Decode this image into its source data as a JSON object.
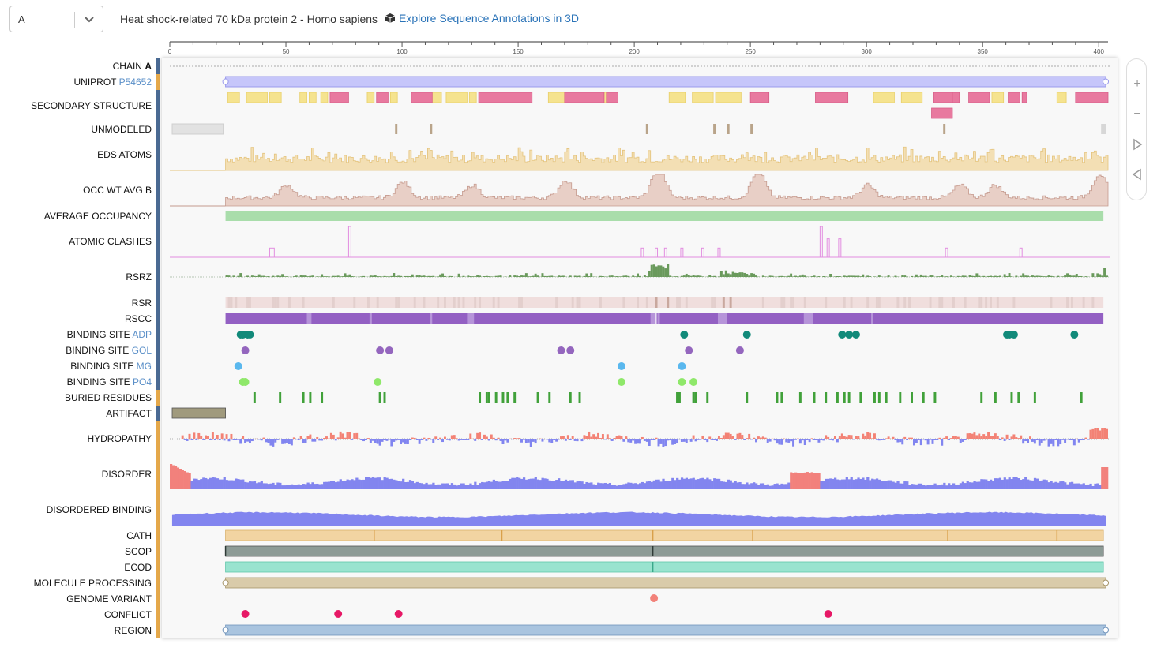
{
  "chain_select": {
    "value": "A"
  },
  "header": {
    "title": "Heat shock-related 70 kDa protein 2 - Homo sapiens",
    "explore_link": "Explore Sequence Annotations in 3D"
  },
  "ruler": {
    "ticks": [
      "0",
      "50",
      "100",
      "150",
      "200",
      "250",
      "300",
      "350",
      "400"
    ]
  },
  "tracks": [
    {
      "label": "CHAIN",
      "suffix": "A",
      "suffix_style": "bold"
    },
    {
      "label": "UNIPROT",
      "suffix": "P54652",
      "suffix_style": "acc"
    },
    {
      "label": "SECONDARY STRUCTURE"
    },
    {
      "label": "UNMODELED"
    },
    {
      "label": "EDS ATOMS"
    },
    {
      "label": "OCC WT AVG B"
    },
    {
      "label": "AVERAGE OCCUPANCY"
    },
    {
      "label": "ATOMIC CLASHES"
    },
    {
      "label": "RSRZ"
    },
    {
      "label": "RSR"
    },
    {
      "label": "RSCC"
    },
    {
      "label": "BINDING SITE",
      "suffix": "ADP",
      "suffix_style": "acc"
    },
    {
      "label": "BINDING SITE",
      "suffix": "GOL",
      "suffix_style": "acc"
    },
    {
      "label": "BINDING SITE",
      "suffix": "MG",
      "suffix_style": "acc"
    },
    {
      "label": "BINDING SITE",
      "suffix": "PO4",
      "suffix_style": "acc"
    },
    {
      "label": "BURIED RESIDUES"
    },
    {
      "label": "ARTIFACT"
    },
    {
      "label": "HYDROPATHY"
    },
    {
      "label": "DISORDER"
    },
    {
      "label": "DISORDERED BINDING"
    },
    {
      "label": "CATH"
    },
    {
      "label": "SCOP"
    },
    {
      "label": "ECOD"
    },
    {
      "label": "MOLECULE PROCESSING"
    },
    {
      "label": "GENOME VARIANT"
    },
    {
      "label": "CONFLICT"
    },
    {
      "label": "REGION"
    }
  ],
  "colors": {
    "uniprot": "#c6c6fa",
    "helix": "#f5e38f",
    "strand": "#e8799f",
    "unmodeled": "#b9a48a",
    "eds": "#f3dfb4",
    "occ": "#e8cfc6",
    "avg_occupancy": "#a9ddab",
    "clash": "#e28de0",
    "rsrz": "#6a9a5c",
    "rsr": "#f0dedd",
    "rscc": "#9360c3",
    "adp": "#128a7a",
    "gol": "#9466be",
    "mg": "#5ab8ee",
    "po4": "#8fe86a",
    "buried": "#41a13a",
    "artifact": "#a09a7d",
    "hydro_pos": "#f38275",
    "hydro_neg": "#8185f0",
    "disorder_low": "#8285ef",
    "disorder_high": "#f2817c",
    "cath": "#f2d4a2",
    "scop": "#8d9b96",
    "ecod": "#99e3cf",
    "molecule": "#d9cbaa",
    "variant": "#f2827a",
    "conflict": "#e71866",
    "region": "#a9c4df"
  },
  "features": {
    "sequence_length": 404,
    "uniprot_range": [
      24,
      403
    ],
    "helices": [
      [
        26,
        30
      ],
      [
        34,
        42
      ],
      [
        44,
        48
      ],
      [
        57,
        59
      ],
      [
        61,
        63
      ],
      [
        66,
        68
      ],
      [
        86,
        88
      ],
      [
        96,
        98
      ],
      [
        113,
        117
      ],
      [
        120,
        128
      ],
      [
        130,
        132
      ],
      [
        138,
        141
      ],
      [
        164,
        170
      ],
      [
        178,
        182
      ],
      [
        188,
        190
      ],
      [
        216,
        222
      ],
      [
        226,
        234
      ],
      [
        236,
        246
      ],
      [
        304,
        312
      ],
      [
        316,
        324
      ],
      [
        355,
        359
      ],
      [
        383,
        386
      ]
    ],
    "strands": [
      [
        70,
        77
      ],
      [
        90,
        94
      ],
      [
        105,
        113
      ],
      [
        134,
        156
      ],
      [
        171,
        187
      ],
      [
        189,
        193
      ],
      [
        251,
        258
      ],
      [
        279,
        292
      ],
      [
        330,
        337
      ],
      [
        338,
        340
      ],
      [
        345,
        353
      ],
      [
        362,
        366
      ],
      [
        368,
        369
      ],
      [
        391,
        404
      ]
    ],
    "strands_row2": [
      [
        329,
        337
      ]
    ],
    "unmodeled": [
      [
        1,
        23
      ],
      [
        98,
        98
      ],
      [
        113,
        113
      ],
      [
        206,
        206
      ],
      [
        235,
        235
      ],
      [
        241,
        241
      ],
      [
        251,
        251
      ],
      [
        334,
        334
      ],
      [
        402,
        403
      ]
    ],
    "binding_adp": [
      31,
      32,
      34,
      35,
      222,
      249,
      290,
      293,
      296,
      361,
      362,
      364,
      390
    ],
    "binding_gol": [
      33,
      91,
      95,
      169,
      173,
      224,
      246
    ],
    "binding_mg": [
      30,
      195,
      221
    ],
    "binding_po4": [
      32,
      33,
      90,
      195,
      221,
      226
    ],
    "buried": [
      37,
      48,
      58,
      61,
      66,
      91,
      93,
      134,
      137,
      138,
      141,
      144,
      146,
      149,
      159,
      164,
      173,
      177,
      219,
      220,
      226,
      227,
      232,
      249,
      262,
      264,
      272,
      278,
      283,
      288,
      291,
      293,
      298,
      304,
      306,
      309,
      315,
      320,
      325,
      330,
      350,
      356,
      363,
      366,
      373,
      393
    ],
    "artifact_range": [
      1,
      24
    ],
    "cath_boundaries": [
      24,
      88,
      143,
      208,
      251,
      335,
      382
    ],
    "scop_boundaries": [
      24,
      208
    ],
    "ecod_boundaries": [
      208
    ],
    "variant": [
      209
    ],
    "conflict": [
      33,
      73,
      99,
      284
    ],
    "clashes": [
      [
        44,
        45,
        0.3
      ],
      [
        78,
        78,
        1.0
      ],
      [
        204,
        204,
        0.3
      ],
      [
        210,
        210,
        0.3
      ],
      [
        214,
        214,
        0.3
      ],
      [
        221,
        221,
        0.3
      ],
      [
        230,
        230,
        0.3
      ],
      [
        237,
        237,
        0.3
      ],
      [
        281,
        281,
        1.0
      ],
      [
        284,
        284,
        0.6
      ],
      [
        289,
        289,
        0.6
      ],
      [
        335,
        335,
        0.3
      ],
      [
        367,
        367,
        0.3
      ]
    ]
  }
}
